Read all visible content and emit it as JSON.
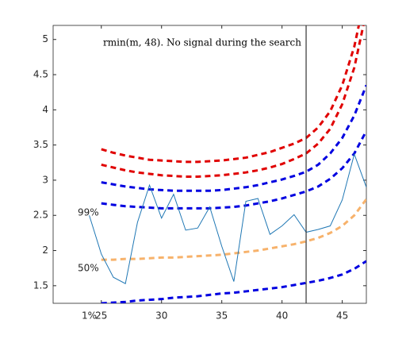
{
  "chart_data": {
    "type": "line",
    "title": "rmin(m, 48). No signal during the search",
    "xlim": [
      21,
      47
    ],
    "ylim": [
      1.25,
      5.2
    ],
    "xticks": [
      25,
      30,
      35,
      40,
      45
    ],
    "yticks": [
      1.5,
      2,
      2.5,
      3,
      3.5,
      4,
      4.5,
      5
    ],
    "vline": 42,
    "annotations": [
      "99%",
      "50%",
      "1%"
    ],
    "series": [
      {
        "color": "#e00000",
        "dashed": true,
        "x": [
          25,
          26,
          27,
          28,
          29,
          30,
          31,
          32,
          33,
          34,
          35,
          36,
          37,
          38,
          39,
          40,
          41,
          42,
          43,
          44,
          45,
          46,
          47
        ],
        "values": [
          3.44,
          3.39,
          3.35,
          3.32,
          3.29,
          3.28,
          3.27,
          3.26,
          3.26,
          3.27,
          3.28,
          3.3,
          3.32,
          3.36,
          3.4,
          3.46,
          3.52,
          3.6,
          3.75,
          3.98,
          4.35,
          4.9,
          5.7
        ]
      },
      {
        "color": "#e00000",
        "dashed": true,
        "x": [
          25,
          26,
          27,
          28,
          29,
          30,
          31,
          32,
          33,
          34,
          35,
          36,
          37,
          38,
          39,
          40,
          41,
          42,
          43,
          44,
          45,
          46,
          47
        ],
        "values": [
          3.22,
          3.18,
          3.14,
          3.11,
          3.09,
          3.07,
          3.06,
          3.05,
          3.05,
          3.06,
          3.07,
          3.09,
          3.11,
          3.14,
          3.18,
          3.23,
          3.3,
          3.38,
          3.52,
          3.73,
          4.08,
          4.6,
          5.4
        ]
      },
      {
        "color": "#0000e0",
        "dashed": true,
        "x": [
          25,
          26,
          27,
          28,
          29,
          30,
          31,
          32,
          33,
          34,
          35,
          36,
          37,
          38,
          39,
          40,
          41,
          42,
          43,
          44,
          45,
          46,
          47
        ],
        "values": [
          2.97,
          2.94,
          2.91,
          2.89,
          2.87,
          2.86,
          2.85,
          2.85,
          2.85,
          2.85,
          2.86,
          2.88,
          2.9,
          2.93,
          2.97,
          3.01,
          3.06,
          3.12,
          3.22,
          3.38,
          3.6,
          3.92,
          4.35
        ]
      },
      {
        "color": "#0000e0",
        "dashed": true,
        "x": [
          25,
          26,
          27,
          28,
          29,
          30,
          31,
          32,
          33,
          34,
          35,
          36,
          37,
          38,
          39,
          40,
          41,
          42,
          43,
          44,
          45,
          46,
          47
        ],
        "values": [
          2.67,
          2.65,
          2.63,
          2.62,
          2.61,
          2.6,
          2.6,
          2.6,
          2.6,
          2.6,
          2.61,
          2.62,
          2.64,
          2.67,
          2.7,
          2.74,
          2.79,
          2.84,
          2.91,
          3.02,
          3.17,
          3.38,
          3.7
        ]
      },
      {
        "color": "#f7b26b",
        "dashed": true,
        "x": [
          25,
          26,
          27,
          28,
          29,
          30,
          31,
          32,
          33,
          34,
          35,
          36,
          37,
          38,
          39,
          40,
          41,
          42,
          43,
          44,
          45,
          46,
          47
        ],
        "values": [
          1.87,
          1.87,
          1.88,
          1.88,
          1.89,
          1.9,
          1.9,
          1.91,
          1.92,
          1.93,
          1.94,
          1.96,
          1.98,
          2.0,
          2.03,
          2.06,
          2.09,
          2.13,
          2.18,
          2.25,
          2.35,
          2.5,
          2.73
        ]
      },
      {
        "color": "#0000e0",
        "dashed": true,
        "x": [
          25,
          26,
          27,
          28,
          29,
          30,
          31,
          32,
          33,
          34,
          35,
          36,
          37,
          38,
          39,
          40,
          41,
          42,
          43,
          44,
          45,
          46,
          47
        ],
        "values": [
          1.25,
          1.26,
          1.27,
          1.29,
          1.3,
          1.31,
          1.33,
          1.34,
          1.35,
          1.37,
          1.39,
          1.4,
          1.42,
          1.44,
          1.46,
          1.48,
          1.51,
          1.54,
          1.57,
          1.61,
          1.66,
          1.74,
          1.85
        ]
      },
      {
        "color": "#1f77b4",
        "dashed": false,
        "x": [
          24,
          25,
          26,
          27,
          28,
          29,
          30,
          31,
          32,
          33,
          34,
          35,
          36,
          37,
          38,
          39,
          40,
          41,
          42,
          43,
          44,
          45,
          46,
          47
        ],
        "values": [
          2.5,
          1.95,
          1.62,
          1.53,
          2.4,
          2.93,
          2.46,
          2.8,
          2.29,
          2.32,
          2.62,
          2.06,
          1.56,
          2.7,
          2.74,
          2.23,
          2.35,
          2.51,
          2.26,
          2.3,
          2.35,
          2.72,
          3.37,
          2.9
        ]
      }
    ]
  }
}
